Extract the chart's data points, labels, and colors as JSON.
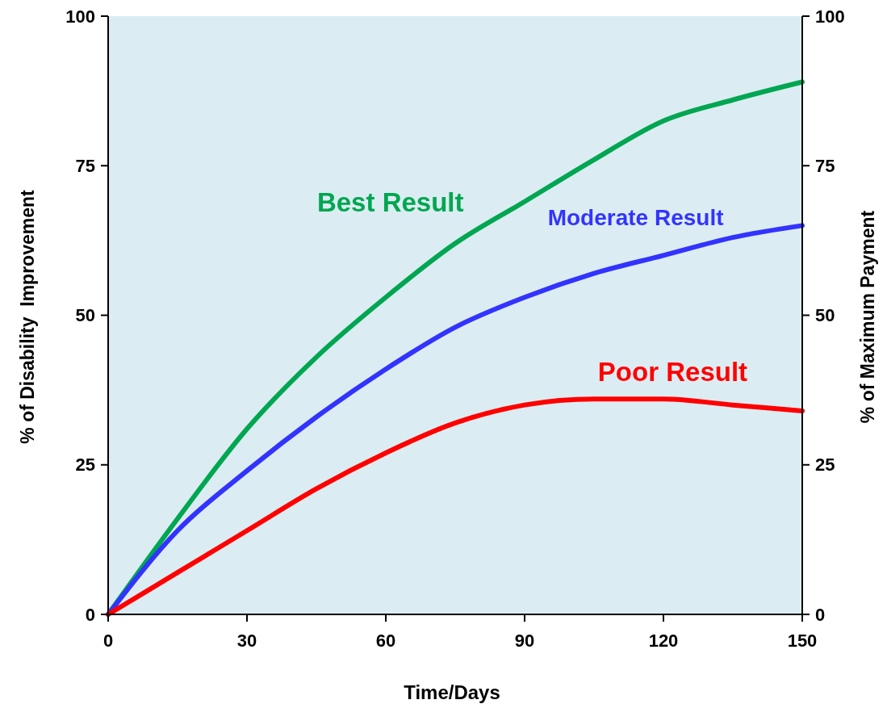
{
  "chart_data": {
    "type": "line",
    "xlabel": "Time/Days",
    "ylabel": "% of Disability  Improvement",
    "y2label": "% of Maximum Payment",
    "x": [
      0,
      15,
      30,
      45,
      60,
      75,
      90,
      105,
      120,
      135,
      150
    ],
    "series": [
      {
        "name": "Best Result",
        "color": "#00a651",
        "values": [
          0,
          16,
          31,
          43,
          53,
          62,
          69,
          76,
          82.5,
          86,
          89
        ]
      },
      {
        "name": "Moderate Result",
        "color": "#3333ff",
        "values": [
          0,
          14,
          24,
          33,
          41,
          48,
          53,
          57,
          60,
          63,
          65
        ]
      },
      {
        "name": "Poor Result",
        "color": "#ff0000",
        "values": [
          0,
          7,
          14,
          21,
          27,
          32,
          35,
          36,
          36,
          35,
          34
        ]
      }
    ],
    "xlim": [
      0,
      150
    ],
    "xticks": [
      0,
      30,
      60,
      90,
      120,
      150
    ],
    "ylim": [
      0,
      100
    ],
    "yticks": [
      0,
      25,
      50,
      75,
      100
    ],
    "y2lim": [
      0,
      100
    ],
    "y2ticks": [
      0,
      25,
      50,
      75,
      100
    ],
    "grid": false,
    "marker": "none",
    "line_style": "solid"
  }
}
